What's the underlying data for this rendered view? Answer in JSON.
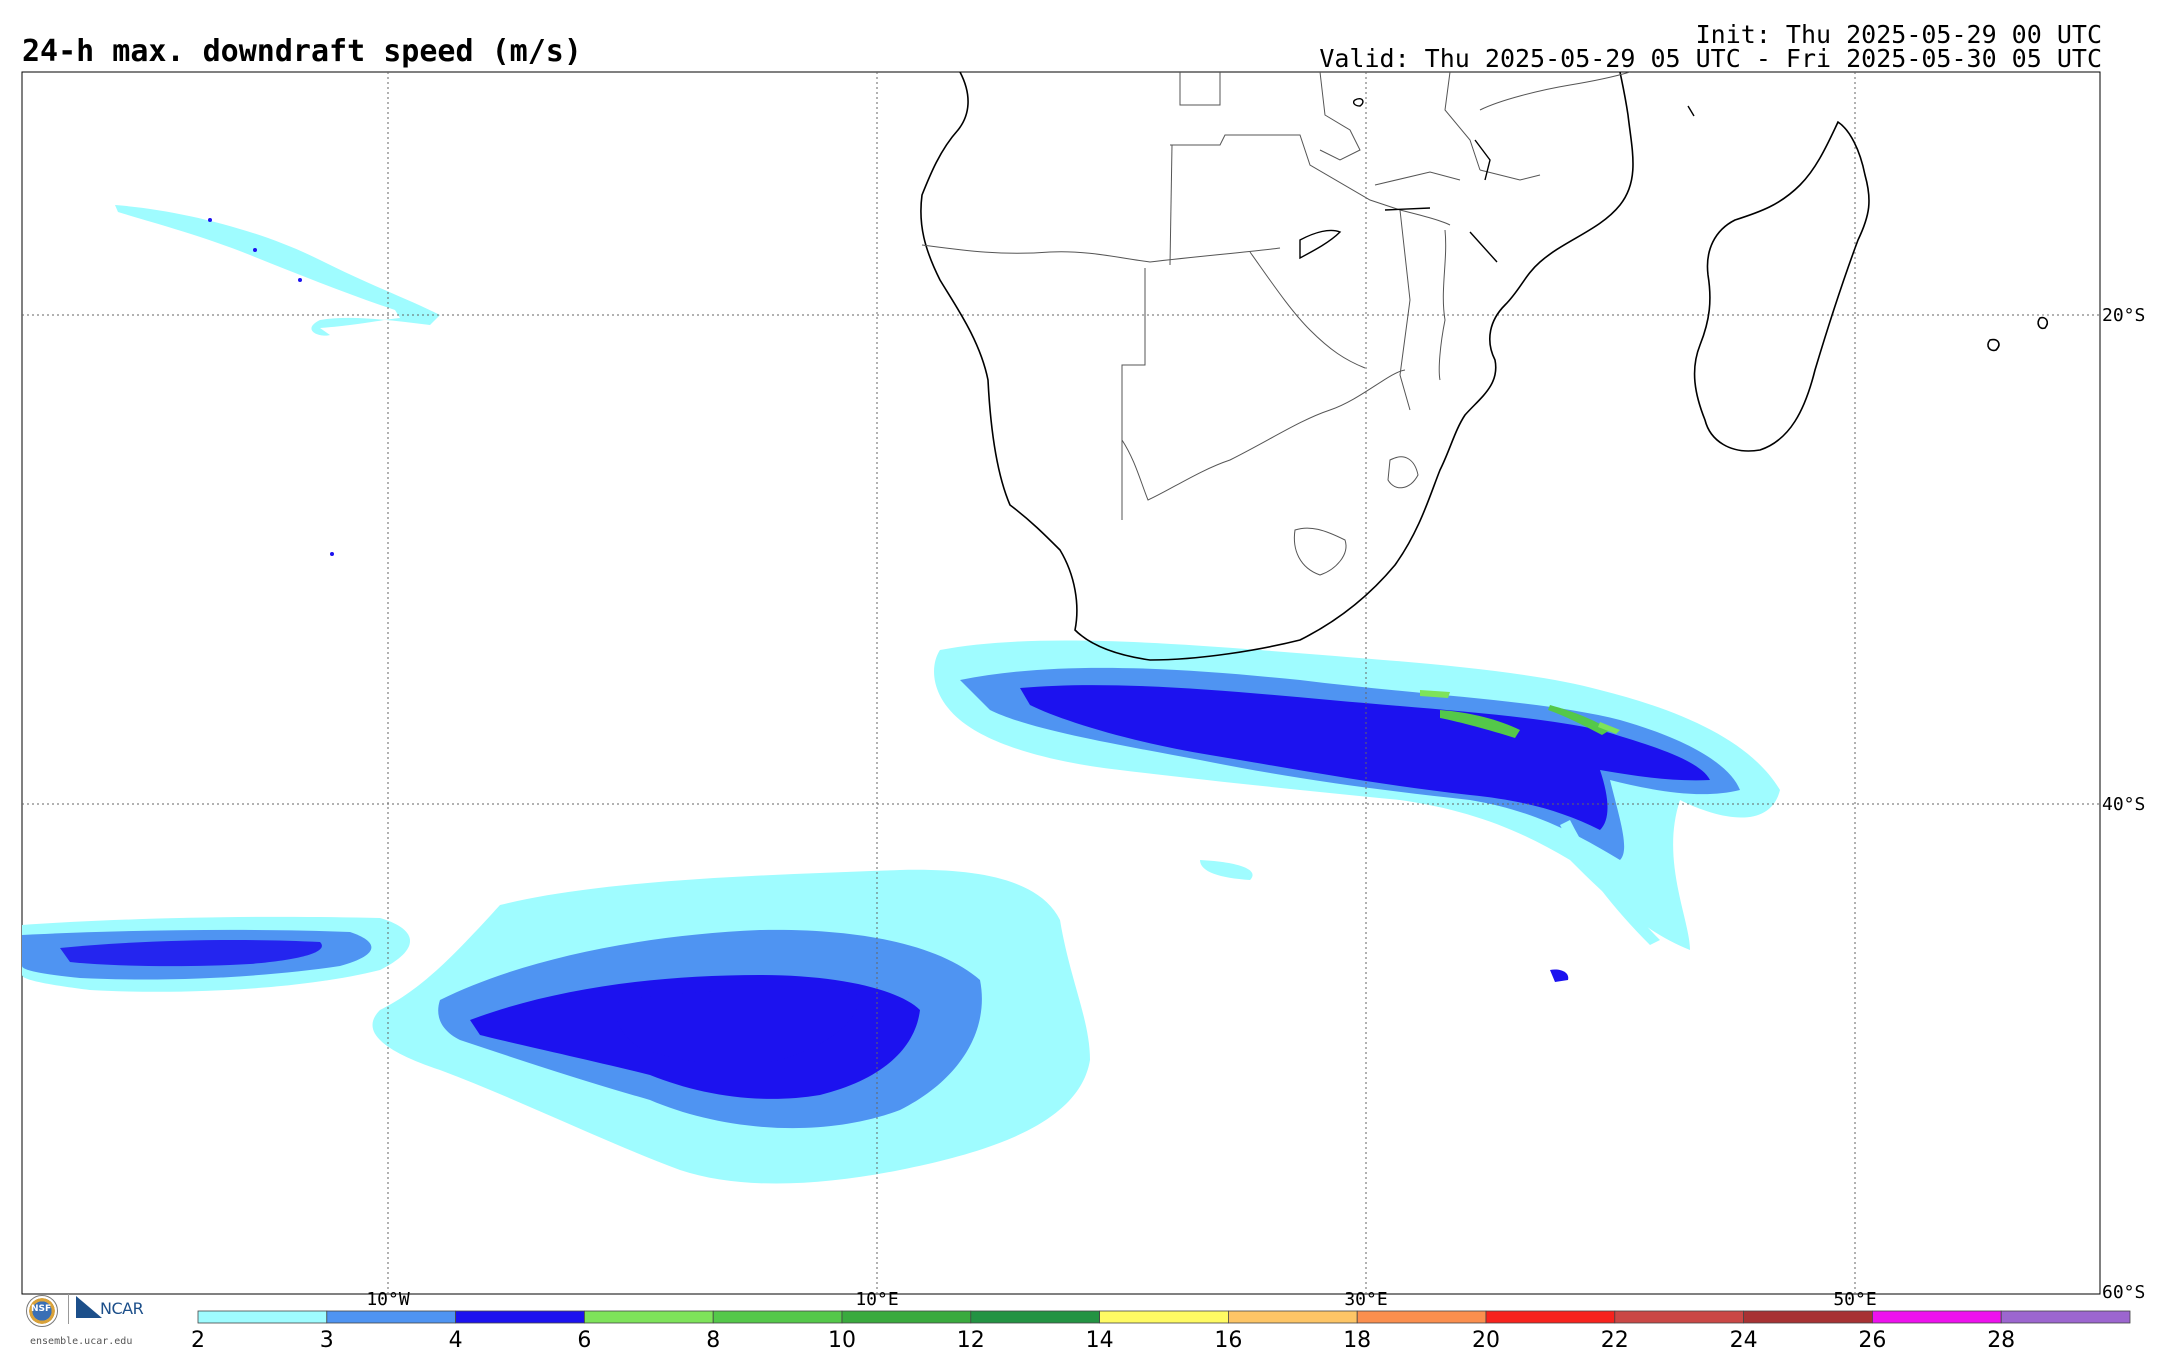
{
  "header": {
    "title": "24-h max. downdraft speed (m/s)",
    "init": "Init: Thu 2025-05-29 00 UTC",
    "valid": "Valid: Thu 2025-05-29 05 UTC - Fri 2025-05-30 05 UTC"
  },
  "map": {
    "longitude_labels": [
      "10°W",
      "10°E",
      "30°E",
      "50°E"
    ],
    "latitude_labels": [
      "20°S",
      "40°S",
      "60°S"
    ]
  },
  "colorbar": {
    "ticks": [
      "2",
      "3",
      "4",
      "6",
      "8",
      "10",
      "12",
      "14",
      "16",
      "18",
      "20",
      "22",
      "24",
      "26",
      "28"
    ],
    "colors": [
      "#9ffcff",
      "#4f94f2",
      "#1c12ef",
      "#7ee35a",
      "#54c84a",
      "#3aaa3e",
      "#239343",
      "#fffb63",
      "#fdc566",
      "#fb8f4e",
      "#f7221d",
      "#ca4745",
      "#a73233",
      "#ee11ee",
      "#9c66cf"
    ]
  },
  "logos": {
    "nsf": "NSF",
    "ncar": "NCAR",
    "url": "ensemble.ucar.edu"
  }
}
